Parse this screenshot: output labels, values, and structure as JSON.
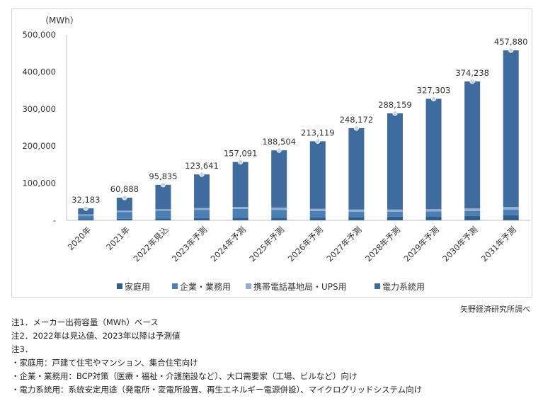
{
  "chart_data": {
    "type": "bar",
    "stacked": true,
    "ylabel": "（MWh）",
    "ylim": [
      0,
      500000
    ],
    "yticks": [
      "500,000",
      "400,000",
      "300,000",
      "200,000",
      "100,000",
      "-"
    ],
    "ytick_values": [
      500000,
      400000,
      300000,
      200000,
      100000,
      0
    ],
    "categories": [
      "2020年",
      "2021年",
      "2022年見込",
      "2023年予測",
      "2024年予測",
      "2025年予測",
      "2026年予測",
      "2027年予測",
      "2028年予測",
      "2029年予測",
      "2030年予測",
      "2031年予測"
    ],
    "totals": [
      32183,
      60888,
      95835,
      123641,
      157091,
      188504,
      213119,
      248172,
      288159,
      327303,
      374238,
      457880
    ],
    "total_labels": [
      "32,183",
      "60,888",
      "95,835",
      "123,641",
      "157,091",
      "188,504",
      "213,119",
      "248,172",
      "288,159",
      "327,303",
      "374,238",
      "457,880"
    ],
    "series": [
      {
        "name": "家庭用",
        "color": "#2e5f8e",
        "values": [
          3000,
          4000,
          5000,
          6000,
          7000,
          7000,
          8000,
          9000,
          10000,
          11000,
          12000,
          14000
        ]
      },
      {
        "name": "企業・業務用",
        "color": "#4a7fb4",
        "values": [
          10000,
          18000,
          21000,
          22000,
          24000,
          21000,
          17000,
          14000,
          13000,
          13000,
          13000,
          15000
        ]
      },
      {
        "name": "携帯電話基地局・UPS用",
        "color": "#94aed3",
        "values": [
          3000,
          4000,
          4000,
          5000,
          5000,
          6000,
          6000,
          6000,
          6000,
          6000,
          7000,
          7000
        ]
      },
      {
        "name": "電力系統用",
        "color": "#3f6c9e",
        "values": [
          16183,
          34888,
          65835,
          90641,
          121091,
          154504,
          182119,
          219172,
          259159,
          297303,
          342238,
          421880
        ]
      }
    ]
  },
  "source": "矢野経済研究所調べ",
  "notes": [
    "注1．メーカー出荷容量（MWh）ベース",
    "注2．2022年は見込値、2023年以降は予測値",
    "注3．",
    "・家庭用：戸建て住宅やマンション、集合住宅向け",
    "・企業・業務用：BCP対策（医療・福祉・介護施設など）、大口需要家（工場、ビルなど）向け",
    "・電力系統用：系統安定用途（発電所・変電所設置、再生エネルギー電源併設）、マイクログリッドシステム向け"
  ]
}
